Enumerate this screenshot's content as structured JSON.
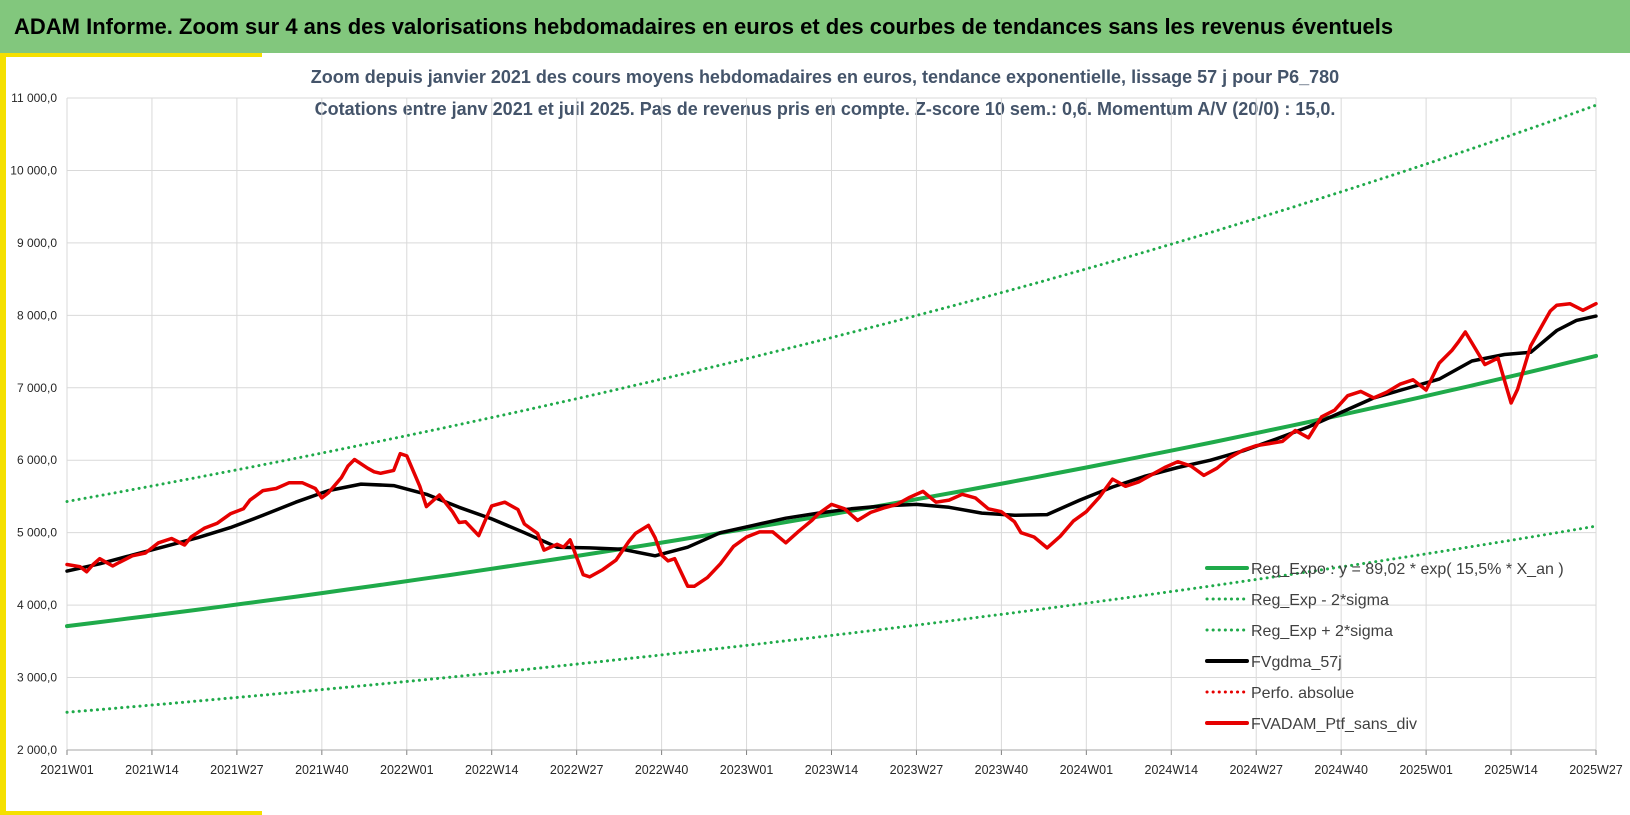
{
  "header": {
    "title": "ADAM Informe. Zoom sur 4 ans des valorisations hebdomadaires en euros et des courbes de tendances sans les revenus éventuels"
  },
  "colors": {
    "banner": "#82c77d",
    "accent": "#f5e000",
    "trend_green": "#1faa4a",
    "sigma_green": "#1faa4a",
    "smoothed_black": "#000000",
    "series_red": "#e60000",
    "grid": "#d9d9d9",
    "subtitle": "#44546a"
  },
  "chart_data": {
    "type": "line",
    "title_lines": [
      "Zoom depuis janvier 2021 des cours moyens hebdomadaires  en euros, tendance exponentielle, lissage 57 j pour  P6_780",
      "Cotations  entre janv 2021 et juil 2025. Pas de revenus pris en compte. Z-score 10 sem.: 0,6. Momentum  A/V (20/0) : 15,0."
    ],
    "x_tick_labels": [
      "2021W01",
      "2021W14",
      "2021W27",
      "2021W40",
      "2022W01",
      "2022W14",
      "2022W27",
      "2022W40",
      "2023W01",
      "2023W14",
      "2023W27",
      "2023W40",
      "2024W01",
      "2024W14",
      "2024W27",
      "2024W40",
      "2025W01",
      "2025W14",
      "2025W27"
    ],
    "x_tick_weeks": [
      0,
      13,
      26,
      39,
      52,
      65,
      78,
      91,
      104,
      117,
      130,
      143,
      156,
      169,
      182,
      195,
      208,
      221,
      234
    ],
    "x_range": [
      0,
      234
    ],
    "ylim": [
      2000,
      11000
    ],
    "y_ticks": [
      2000,
      3000,
      4000,
      5000,
      6000,
      7000,
      8000,
      9000,
      10000,
      11000
    ],
    "y_tick_labels": [
      "2 000,0",
      "3 000,0",
      "4 000,0",
      "5 000,0",
      "6 000,0",
      "7 000,0",
      "8 000,0",
      "9 000,0",
      "10 000,0",
      "11 000,0"
    ],
    "grid": "both",
    "legend_position": "bottom-right",
    "legend": [
      {
        "key": "reg_expo",
        "label": "Reg_Expo :  y = 89,02 * exp( 15,5% *  X_an )",
        "style": "solid",
        "color": "#1faa4a"
      },
      {
        "key": "reg_minus",
        "label": "Reg_Exp - 2*sigma",
        "style": "dotted",
        "color": "#1faa4a"
      },
      {
        "key": "reg_plus",
        "label": "Reg_Exp + 2*sigma",
        "style": "dotted",
        "color": "#1faa4a"
      },
      {
        "key": "fvgdma",
        "label": "FVgdma_57j",
        "style": "solid",
        "color": "#000000"
      },
      {
        "key": "perfo",
        "label": "Perfo. absolue",
        "style": "dotted",
        "color": "#e60000"
      },
      {
        "key": "fvadam",
        "label": "FVADAM_Ptf_sans_div",
        "style": "solid",
        "color": "#e60000"
      }
    ],
    "series": [
      {
        "key": "reg_expo",
        "x": [
          0,
          234
        ],
        "values": [
          3710,
          7440
        ]
      },
      {
        "key": "reg_minus",
        "x": [
          0,
          234
        ],
        "values": [
          2520,
          5090
        ]
      },
      {
        "key": "reg_plus",
        "x": [
          0,
          234
        ],
        "values": [
          5430,
          10900
        ]
      },
      {
        "key": "fvgdma",
        "x": [
          0,
          5,
          10,
          15,
          20,
          25,
          30,
          35,
          40,
          45,
          50,
          55,
          60,
          65,
          70,
          75,
          80,
          85,
          90,
          95,
          100,
          105,
          110,
          115,
          120,
          125,
          130,
          135,
          140,
          145,
          150,
          155,
          160,
          165,
          170,
          175,
          180,
          185,
          190,
          195,
          200,
          205,
          210,
          215,
          220,
          224,
          228,
          231,
          234
        ],
        "values": [
          4470,
          4570,
          4690,
          4810,
          4930,
          5070,
          5240,
          5420,
          5580,
          5670,
          5650,
          5530,
          5350,
          5190,
          5000,
          4800,
          4790,
          4770,
          4680,
          4800,
          5000,
          5100,
          5200,
          5270,
          5330,
          5370,
          5390,
          5350,
          5270,
          5240,
          5250,
          5450,
          5630,
          5780,
          5900,
          6000,
          6130,
          6290,
          6460,
          6660,
          6860,
          6990,
          7120,
          7370,
          7460,
          7490,
          7790,
          7930,
          7990
        ]
      },
      {
        "key": "fvadam",
        "x": [
          0,
          2,
          3,
          4,
          5,
          7,
          8,
          10,
          12,
          14,
          16,
          18,
          19,
          21,
          23,
          25,
          27,
          28,
          30,
          32,
          34,
          36,
          38,
          39,
          40,
          42,
          43,
          44,
          46,
          47,
          48,
          50,
          51,
          52,
          54,
          55,
          57,
          59,
          60,
          61,
          63,
          64,
          65,
          67,
          69,
          70,
          72,
          73,
          75,
          76,
          77,
          79,
          80,
          82,
          84,
          86,
          87,
          89,
          90,
          91,
          92,
          93,
          95,
          96,
          98,
          100,
          102,
          104,
          106,
          108,
          110,
          112,
          114,
          115,
          117,
          119,
          121,
          123,
          125,
          127,
          129,
          131,
          133,
          135,
          137,
          139,
          141,
          143,
          145,
          146,
          148,
          150,
          152,
          154,
          156,
          158,
          160,
          162,
          164,
          166,
          168,
          170,
          172,
          174,
          176,
          178,
          180,
          182,
          184,
          186,
          188,
          190,
          192,
          194,
          196,
          198,
          200,
          202,
          204,
          206,
          208,
          210,
          212,
          213,
          214,
          215,
          217,
          219,
          220,
          221,
          222,
          224,
          226,
          227,
          228,
          230,
          232,
          234
        ],
        "values": [
          4560,
          4530,
          4460,
          4560,
          4640,
          4540,
          4590,
          4680,
          4720,
          4860,
          4920,
          4830,
          4940,
          5060,
          5130,
          5260,
          5330,
          5450,
          5580,
          5610,
          5690,
          5690,
          5610,
          5480,
          5550,
          5760,
          5920,
          6010,
          5890,
          5840,
          5820,
          5860,
          6090,
          6060,
          5640,
          5360,
          5520,
          5290,
          5140,
          5150,
          4960,
          5170,
          5370,
          5420,
          5320,
          5120,
          4990,
          4760,
          4840,
          4800,
          4900,
          4420,
          4390,
          4490,
          4620,
          4880,
          4990,
          5100,
          4930,
          4690,
          4610,
          4640,
          4260,
          4260,
          4380,
          4570,
          4810,
          4940,
          5010,
          5010,
          4860,
          5020,
          5170,
          5260,
          5390,
          5330,
          5170,
          5280,
          5340,
          5390,
          5490,
          5570,
          5420,
          5450,
          5530,
          5480,
          5330,
          5290,
          5150,
          5000,
          4940,
          4790,
          4950,
          5160,
          5290,
          5490,
          5740,
          5640,
          5700,
          5800,
          5900,
          5980,
          5920,
          5790,
          5890,
          6040,
          6140,
          6200,
          6230,
          6260,
          6410,
          6310,
          6600,
          6690,
          6890,
          6950,
          6860,
          6940,
          7050,
          7110,
          6970,
          7340,
          7520,
          7640,
          7770,
          7620,
          7320,
          7410,
          7100,
          6790,
          6980,
          7580,
          7900,
          8060,
          8140,
          8160,
          8070,
          8160
        ]
      }
    ]
  }
}
